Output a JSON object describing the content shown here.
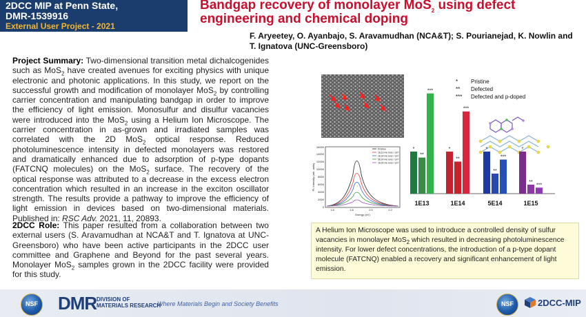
{
  "header": {
    "line1": "2DCC MIP at Penn State,",
    "line2": "DMR-1539916",
    "line3": "External User Project - 2021",
    "title_part1": "Bandgap recovery of monolayer MoS",
    "title_sub": "2",
    "title_part2": " using defect engineering and chemical doping",
    "authors": "F. Aryeetey, O. Ayanbajo, S. Aravamudhan (NCA&T); S. Pourianejad, K. Nowlin and T. Ignatova (UNC-Greensboro)"
  },
  "summary": {
    "label": "Project Summary:",
    "t1": " Two-dimensional transition metal dichalcogenides such as MoS",
    "t2": " have created avenues for exciting physics with unique electronic and photonic applications. In this study, we report on the successful growth and modification of monolayer MoS",
    "t3": " by controlling carrier concentration and manipulating bandgap in order to improve the efficiency of light emission. Monosulfur and disulfur vacancies were introduced into the MoS",
    "t4": " using a Helium Ion Microscope.  The carrier concentration in as-grown and irradiated samples was correlated with the 2D MoS",
    "t5": " optical response. Reduced photoluminescence intensity in defected monolayers was restored and dramatically enhanced due to adsorption of p-type dopants (FATCNQ molecules) on the MoS",
    "t6": " surface. The recovery of the optical response was attributed to a decrease in the excess electron concentration which resulted in an increase in the exciton oscillator strength. The results provide a pathway to improve the efficiency of light emission in devices based on two-dimensional  materials.  Published in: ",
    "journal": "RSC Adv.",
    "t7": " 2021, 11, 20893."
  },
  "role": {
    "label": "2DCC Role:",
    "t1": " This paper resulted from a collaboration between two external users (S. Aravamudhan at NCA&T and T. Ignatova at UNC-Greensboro) who have been active participants in the 2DCC user committee and Graphene and Beyond for the past several years. Monolayer MoS",
    "t2": " samples grown in the 2DCC facility were provided for this study."
  },
  "caption": {
    "t1": "A Helium Ion Microscope was used to introduce a controlled density of sulfur vacancies in monolayer MoS",
    "t2": " which resulted in decreasing photoluminescence intensity. For lower defect  concentrations, the introduction of a p-type dopant molecule (FATCNQ)  enabled a recovery and significant enhancement of light emission."
  },
  "sub2": "2",
  "spectra": {
    "ylabel": "PL Intensity (arb. units)",
    "xlabel": "Energy (eV)",
    "yticks": [
      "0",
      "2000",
      "4000",
      "6000",
      "8000",
      "10000",
      "12000",
      "14000",
      "16000"
    ],
    "xticks": [
      "1.6",
      "1.8",
      "2.0",
      "2.2"
    ],
    "legend": [
      "Pristine",
      "1E13 He ions / cm²",
      "1E14 He ions / cm²",
      "5E14 He ions / cm²",
      "1E15 He ions / cm²"
    ]
  },
  "chart_data": {
    "type": "bar",
    "categories": [
      "1E13",
      "1E14",
      "5E14",
      "1E15"
    ],
    "series": [
      {
        "name": "Pristine",
        "marker": "*",
        "color": "#1f7a3f",
        "values": [
          42,
          42,
          42,
          42
        ]
      },
      {
        "name": "Defected",
        "marker": "**",
        "values": [
          36,
          32,
          20,
          9
        ]
      },
      {
        "name": "Defected and p-doped",
        "marker": "***",
        "values": [
          100,
          82,
          34,
          6
        ]
      }
    ],
    "group_colors": [
      [
        "#1f7a3f",
        "#3b8c47",
        "#2fb34a"
      ],
      [
        "#c1242f",
        "#c8202d",
        "#d7263d"
      ],
      [
        "#1d3aa0",
        "#2848b0",
        "#2550b8"
      ],
      [
        "#7a2d8c",
        "#8a3aa0",
        "#8c3cb0"
      ]
    ],
    "ylim": [
      0,
      110
    ],
    "legend_position": "top-right",
    "grid": false
  },
  "footer": {
    "nsf": "NSF",
    "dmr": "DMR",
    "division": [
      "DIVISION OF",
      "MATERIALS RESEARCH"
    ],
    "tagline": "Where Materials Begin and Society Benefits",
    "mip": "2DCC-MIP"
  }
}
